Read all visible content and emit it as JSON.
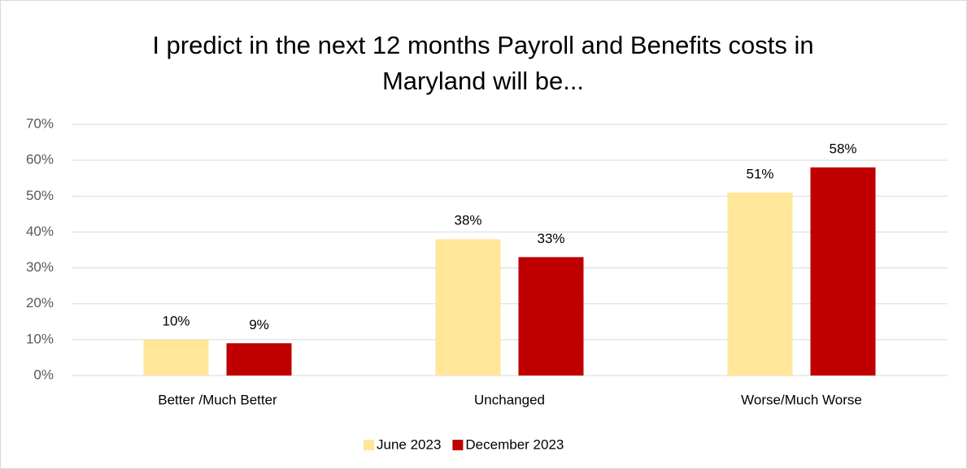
{
  "chart_data": {
    "type": "bar",
    "title": "I predict in the next 12 months Payroll and Benefits costs in Maryland will be...",
    "categories": [
      "Better /Much Better",
      "Unchanged",
      "Worse/Much Worse"
    ],
    "series": [
      {
        "name": "June 2023",
        "color": "#ffe699",
        "values": [
          10,
          38,
          51
        ],
        "value_labels": [
          "10%",
          "38%",
          "51%"
        ]
      },
      {
        "name": "December 2023",
        "color": "#c00000",
        "values": [
          9,
          33,
          58
        ],
        "value_labels": [
          "9%",
          "33%",
          "58%"
        ]
      }
    ],
    "ylim": [
      0,
      70
    ],
    "yticks": [
      {
        "value": 0,
        "label": "0%"
      },
      {
        "value": 10,
        "label": "10%"
      },
      {
        "value": 20,
        "label": "20%"
      },
      {
        "value": 30,
        "label": "30%"
      },
      {
        "value": 40,
        "label": "40%"
      },
      {
        "value": 50,
        "label": "50%"
      },
      {
        "value": 60,
        "label": "60%"
      },
      {
        "value": 70,
        "label": "70%"
      }
    ],
    "grid": true,
    "legend": "bottom"
  }
}
